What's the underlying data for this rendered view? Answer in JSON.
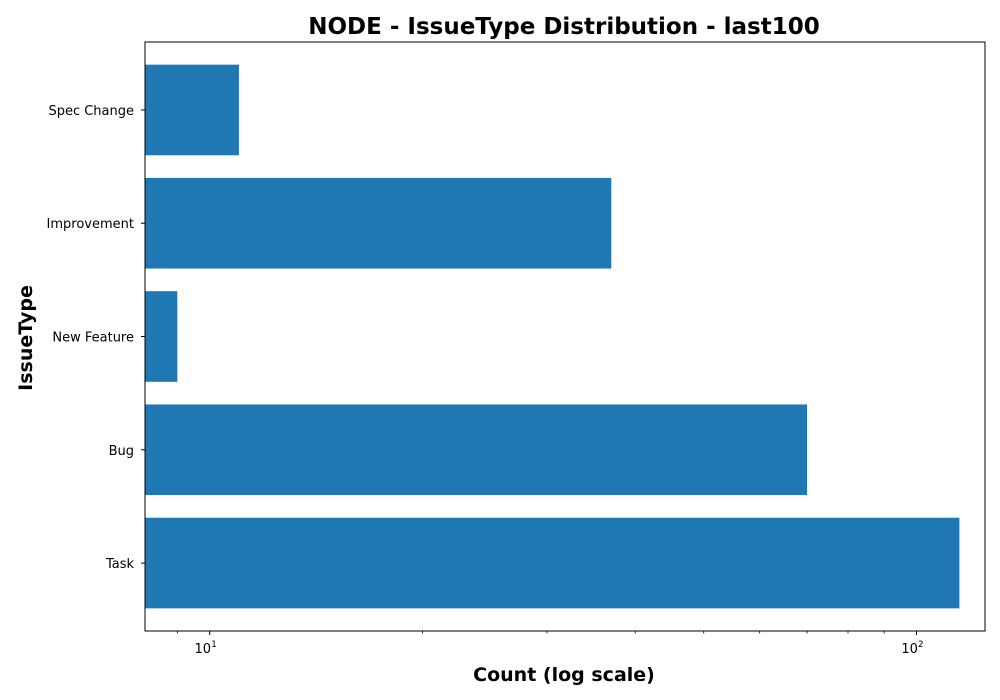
{
  "chart_data": {
    "type": "bar",
    "orientation": "horizontal",
    "title": "NODE - IssueType Distribution - last100",
    "xlabel": "Count (log scale)",
    "ylabel": "IssueType",
    "xscale": "log",
    "xlim": [
      8.1,
      125
    ],
    "x_ticks": [
      {
        "value": 10,
        "base": "10",
        "exp": "1"
      },
      {
        "value": 100,
        "base": "10",
        "exp": "2"
      }
    ],
    "categories": [
      "Task",
      "Bug",
      "New Feature",
      "Improvement",
      "Spec Change"
    ],
    "values": [
      115,
      70,
      9,
      37,
      11
    ],
    "bar_color": "#1f77b4",
    "grid": false,
    "legend": "none"
  }
}
